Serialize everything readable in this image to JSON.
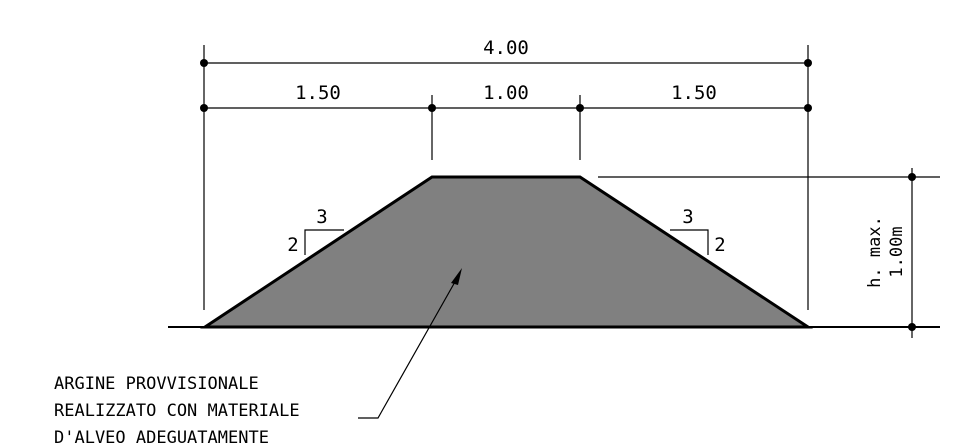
{
  "dimensions": {
    "total_width": "4.00",
    "left_width": "1.50",
    "crest_width": "1.00",
    "right_width": "1.50"
  },
  "slopes": {
    "left": {
      "horizontal": "3",
      "vertical": "2"
    },
    "right": {
      "horizontal": "3",
      "vertical": "2"
    }
  },
  "height": {
    "line1": "h. max.",
    "line2": "1.00m"
  },
  "note": {
    "lines": [
      "ARGINE PROVVISIONALE",
      "REALIZZATO CON MATERIALE",
      "D'ALVEO ADEGUATAMENTE"
    ]
  },
  "colors": {
    "fill": "#808080",
    "stroke": "#000000"
  }
}
